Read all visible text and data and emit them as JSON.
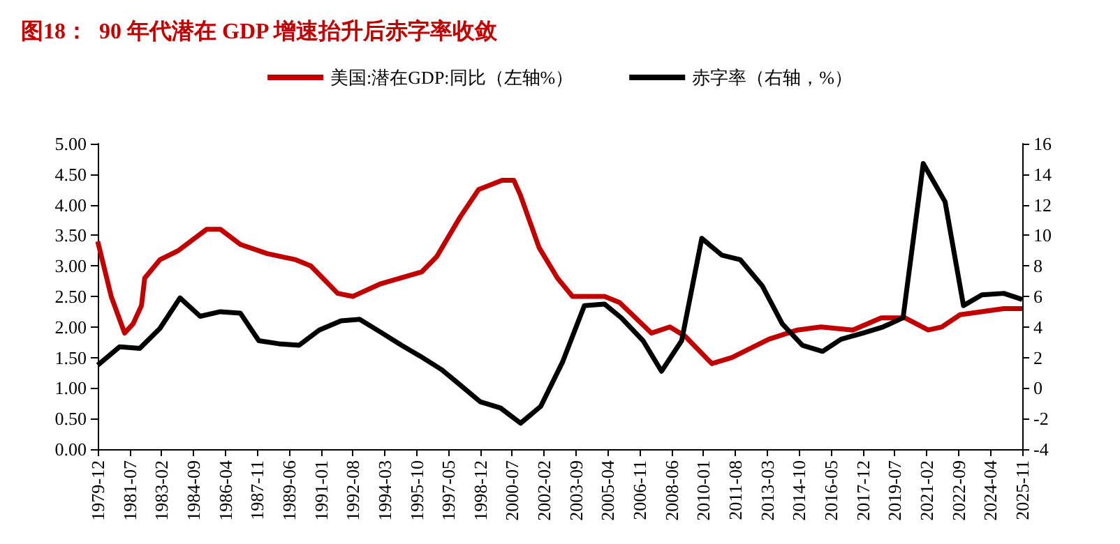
{
  "chart_data": {
    "type": "line",
    "title": "图18：  90 年代潜在 GDP 增速抬升后赤字率收敛",
    "legend": "top",
    "grid": false,
    "xlim": [
      "1979-12",
      "2025-11"
    ],
    "xticks": [
      "1979-12",
      "1981-07",
      "1983-02",
      "1984-09",
      "1986-04",
      "1987-11",
      "1989-06",
      "1991-01",
      "1992-08",
      "1994-03",
      "1995-10",
      "1997-05",
      "1998-12",
      "2000-07",
      "2002-02",
      "2003-09",
      "2005-04",
      "2006-11",
      "2008-06",
      "2010-01",
      "2011-08",
      "2013-03",
      "2014-10",
      "2016-05",
      "2017-12",
      "2019-07",
      "2021-02",
      "2022-09",
      "2024-04",
      "2025-11"
    ],
    "ylim": [
      0,
      5
    ],
    "yticks": [
      {
        "value": 0,
        "label": "0.00"
      },
      {
        "value": 0.5,
        "label": "0.50"
      },
      {
        "value": 1,
        "label": "1.00"
      },
      {
        "value": 1.5,
        "label": "1.50"
      },
      {
        "value": 2,
        "label": "2.00"
      },
      {
        "value": 2.5,
        "label": "2.50"
      },
      {
        "value": 3,
        "label": "3.00"
      },
      {
        "value": 3.5,
        "label": "3.50"
      },
      {
        "value": 4,
        "label": "4.00"
      },
      {
        "value": 4.5,
        "label": "4.50"
      },
      {
        "value": 5,
        "label": "5.00"
      }
    ],
    "y2lim": [
      -4,
      16
    ],
    "y2ticks": [
      -4,
      -2,
      0,
      2,
      4,
      6,
      8,
      10,
      12,
      14,
      16
    ],
    "series": [
      {
        "name": "美国:潜在GDP:同比（左轴%）",
        "color": "#c00000",
        "x": [
          "1979-12",
          "1980-08",
          "1981-04",
          "1981-09",
          "1982-02",
          "1982-04",
          "1983-01",
          "1983-12",
          "1985-05",
          "1986-01",
          "1987-01",
          "1988-05",
          "1989-10",
          "1990-07",
          "1991-11",
          "1992-08",
          "1993-12",
          "1996-01",
          "1996-10",
          "1997-12",
          "1998-11",
          "2000-01",
          "2000-08",
          "2000-12",
          "2001-11",
          "2002-10",
          "2003-07",
          "2005-02",
          "2005-11",
          "2007-06",
          "2008-05",
          "2009-02",
          "2010-06",
          "2011-06",
          "2013-04",
          "2014-09",
          "2015-11",
          "2017-06",
          "2018-11",
          "2020-01",
          "2021-03",
          "2021-11",
          "2022-10",
          "2024-12",
          "2025-11"
        ],
        "values": [
          3.4,
          2.5,
          1.9,
          2.05,
          2.35,
          2.8,
          3.1,
          3.25,
          3.6,
          3.6,
          3.35,
          3.2,
          3.1,
          3.0,
          2.55,
          2.5,
          2.7,
          2.9,
          3.15,
          3.8,
          4.25,
          4.4,
          4.4,
          4.15,
          3.3,
          2.8,
          2.5,
          2.5,
          2.4,
          1.9,
          2.0,
          1.85,
          1.4,
          1.5,
          1.8,
          1.95,
          2.0,
          1.95,
          2.15,
          2.15,
          1.95,
          2.0,
          2.2,
          2.3,
          2.3
        ]
      },
      {
        "name": "赤字率（右轴，%）",
        "color": "#000000",
        "axis": "y2",
        "x": [
          "1979-12",
          "1981-01",
          "1982-01",
          "1983-01",
          "1984-01",
          "1985-01",
          "1986-01",
          "1987-01",
          "1987-12",
          "1988-12",
          "1989-12",
          "1990-12",
          "1992-01",
          "1992-12",
          "1993-12",
          "1995-01",
          "1995-12",
          "1997-01",
          "1997-12",
          "1998-12",
          "1999-12",
          "2000-12",
          "2001-12",
          "2003-01",
          "2004-02",
          "2005-02",
          "2005-12",
          "2007-01",
          "2007-12",
          "2008-12",
          "2009-12",
          "2010-12",
          "2011-11",
          "2012-12",
          "2013-12",
          "2014-12",
          "2015-12",
          "2016-11",
          "2017-12",
          "2018-12",
          "2019-12",
          "2020-12",
          "2022-01",
          "2022-12",
          "2023-11",
          "2024-12",
          "2025-11"
        ],
        "values": [
          1.5,
          2.7,
          2.6,
          3.9,
          5.9,
          4.7,
          5.0,
          4.9,
          3.1,
          2.9,
          2.8,
          3.8,
          4.4,
          4.5,
          3.7,
          2.8,
          2.1,
          1.2,
          0.2,
          -0.9,
          -1.3,
          -2.3,
          -1.2,
          1.7,
          5.4,
          5.5,
          4.6,
          3.1,
          1.1,
          3.1,
          9.8,
          8.7,
          8.4,
          6.7,
          4.2,
          2.8,
          2.4,
          3.2,
          3.6,
          4.0,
          4.6,
          14.7,
          12.2,
          5.4,
          6.1,
          6.2,
          5.8
        ]
      }
    ]
  }
}
